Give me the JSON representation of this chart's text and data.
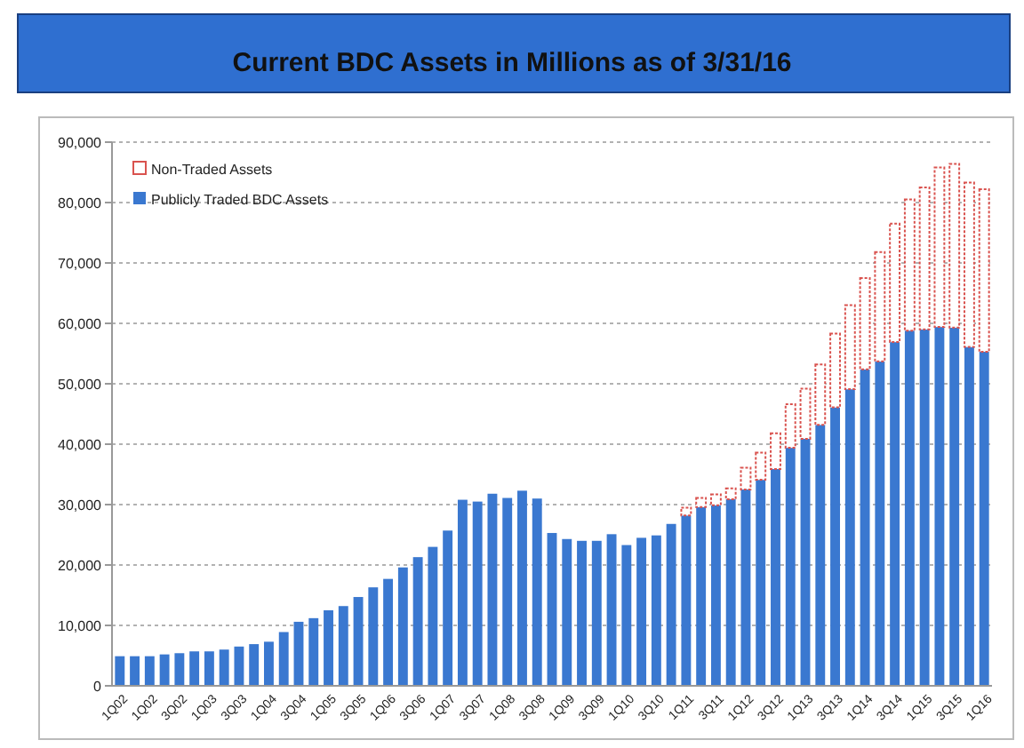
{
  "chart_data": {
    "type": "bar",
    "title": "Current BDC Assets in Millions as of 3/31/16",
    "stacked": true,
    "categories": [
      "1Q02",
      null,
      "1Q02",
      null,
      "3Q02",
      null,
      "1Q03",
      null,
      "3Q03",
      null,
      "1Q04",
      null,
      "3Q04",
      null,
      "1Q05",
      null,
      "3Q05",
      null,
      "1Q06",
      null,
      "3Q06",
      null,
      "1Q07",
      null,
      "3Q07",
      null,
      "1Q08",
      null,
      "3Q08",
      null,
      "1Q09",
      null,
      "3Q09",
      null,
      "1Q10",
      null,
      "3Q10",
      null,
      "1Q11",
      null,
      "3Q11",
      null,
      "1Q12",
      null,
      "3Q12",
      null,
      "1Q13",
      null,
      "3Q13",
      null,
      "1Q14",
      null,
      "3Q14",
      null,
      "1Q15",
      null,
      "3Q15",
      null,
      "1Q16"
    ],
    "series": [
      {
        "name": "Publicly Traded BDC Assets",
        "color": "#3a78d0",
        "values": [
          4900,
          4900,
          4900,
          5200,
          5400,
          5700,
          5700,
          6000,
          6500,
          6900,
          7300,
          8900,
          10600,
          11200,
          12500,
          13200,
          14700,
          16300,
          17700,
          19600,
          21300,
          23000,
          25700,
          30800,
          30500,
          31800,
          31100,
          32300,
          31000,
          25300,
          24300,
          24000,
          24000,
          25100,
          23300,
          24500,
          24900,
          26800,
          28200,
          29600,
          29900,
          30900,
          32500,
          34100,
          35900,
          39400,
          40900,
          43200,
          46100,
          49100,
          52400,
          53700,
          56900,
          58800,
          59000,
          59400,
          59300,
          56100,
          55300
        ]
      },
      {
        "name": "Non-Traded Assets",
        "color": "#d9534f",
        "values": [
          0,
          0,
          0,
          0,
          0,
          0,
          0,
          0,
          0,
          0,
          0,
          0,
          0,
          0,
          0,
          0,
          0,
          0,
          0,
          0,
          0,
          0,
          0,
          0,
          0,
          0,
          0,
          0,
          0,
          0,
          0,
          0,
          0,
          0,
          0,
          0,
          0,
          0,
          1300,
          1500,
          1800,
          1800,
          3600,
          4500,
          5900,
          7200,
          8300,
          10000,
          12200,
          13900,
          15100,
          18100,
          19600,
          21700,
          23500,
          26400,
          27100,
          27200,
          26900
        ]
      }
    ],
    "ylim": [
      0,
      90000
    ],
    "yticks": [
      {
        "value": 0,
        "label": "0"
      },
      {
        "value": 10000,
        "label": "10,000"
      },
      {
        "value": 20000,
        "label": "20,000"
      },
      {
        "value": 30000,
        "label": "30,000"
      },
      {
        "value": 40000,
        "label": "40,000"
      },
      {
        "value": 50000,
        "label": "50,000"
      },
      {
        "value": 60000,
        "label": "60,000"
      },
      {
        "value": 70000,
        "label": "70,000"
      },
      {
        "value": 80000,
        "label": "80,000"
      },
      {
        "value": 90000,
        "label": "90,000"
      }
    ],
    "grid": "y",
    "legend": "top left"
  }
}
